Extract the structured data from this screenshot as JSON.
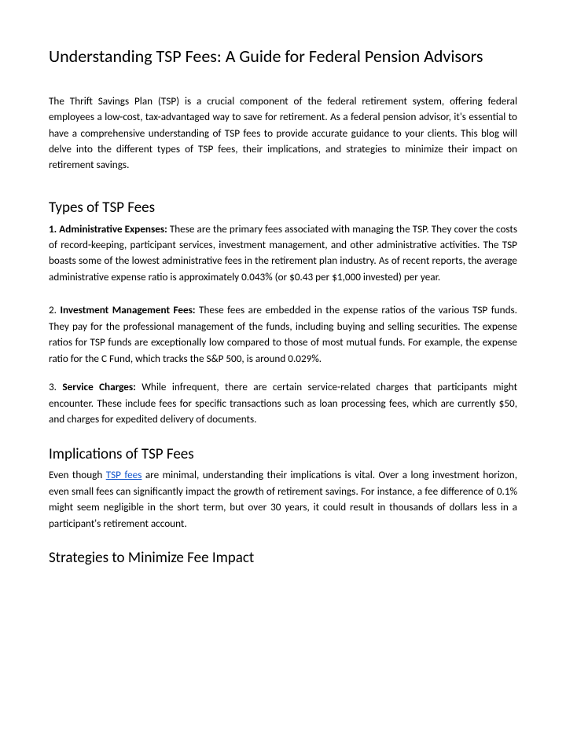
{
  "title": "Understanding TSP Fees: A Guide for Federal Pension Advisors",
  "intro": "The Thrift Savings Plan (TSP) is a crucial component of the federal retirement system, offering federal employees a low-cost, tax-advantaged way to save for retirement. As a federal pension advisor, it's essential to have a comprehensive understanding of TSP fees to provide accurate guidance to your clients. This blog will delve into the different types of TSP fees, their implications, and strategies to minimize their impact on retirement savings.",
  "section1": {
    "heading": "Types of TSP Fees",
    "item1_lead": "1. Administrative Expenses: ",
    "item1_body": "These are the primary fees associated with managing the TSP. They cover the costs of record-keeping, participant services, investment management, and other administrative activities. The TSP boasts some of the lowest administrative fees in the retirement plan industry. As of recent reports, the average administrative expense ratio is approximately 0.043% (or $0.43 per $1,000 invested) per year.",
    "item2_num": "2. ",
    "item2_lead": "Investment Management Fees: ",
    "item2_body": "These fees are embedded in the expense ratios of the various TSP funds. They pay for the professional management of the funds, including buying and selling securities. The expense ratios for TSP funds are exceptionally low compared to those of most mutual funds. For example, the expense ratio for the C Fund, which tracks the S&P 500, is around 0.029%.",
    "item3_num": "3. ",
    "item3_lead": "Service Charges: ",
    "item3_body": "While infrequent, there are certain service-related charges that participants might encounter. These include fees for specific transactions such as loan processing fees, which are currently $50, and charges for expedited delivery of documents."
  },
  "section2": {
    "heading": "Implications of TSP Fees",
    "body_pre": "Even though ",
    "link_text": "TSP fees",
    "body_post": " are minimal, understanding their implications is vital. Over a long investment horizon, even small fees can significantly impact the growth of retirement savings. For instance, a fee difference of 0.1% might seem negligible in the short term, but over 30 years, it could result in thousands of dollars less in a participant's retirement account."
  },
  "section3": {
    "heading": "Strategies to Minimize Fee Impact"
  }
}
